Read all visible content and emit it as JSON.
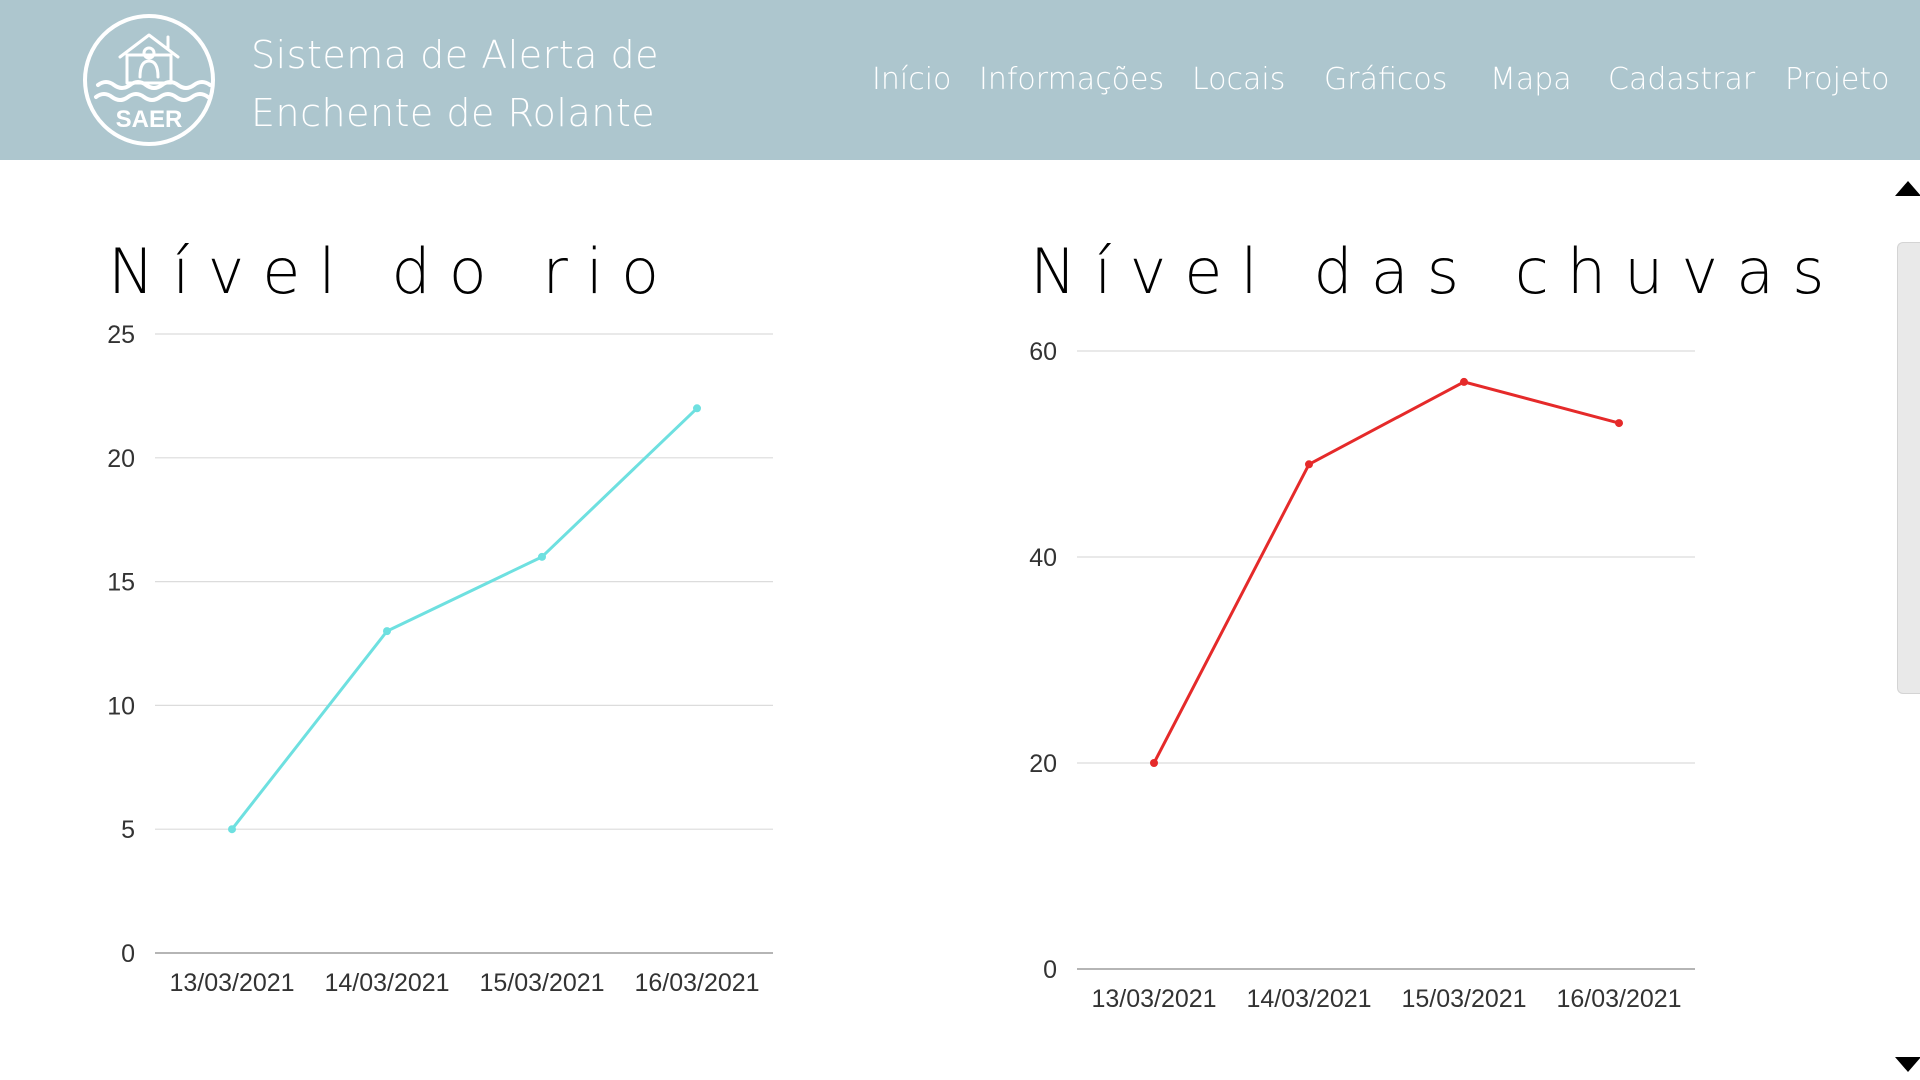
{
  "header": {
    "logo_text": "SAER",
    "title_line1": "Sistema de Alerta de",
    "title_line2": "Enchente de Rolante",
    "background_color": "#adc6ce"
  },
  "nav": {
    "items": [
      {
        "label": "Início"
      },
      {
        "label": "Informações"
      },
      {
        "label": "Locais"
      },
      {
        "label": "Gráficos"
      },
      {
        "label": "Mapa"
      },
      {
        "label": "Cadastrar"
      },
      {
        "label": "Projeto"
      }
    ]
  },
  "charts": {
    "river": {
      "heading": "Nível do rio"
    },
    "rain": {
      "heading": "Nível das chuvas"
    }
  },
  "chart_data": [
    {
      "type": "line",
      "title": "Nível do rio",
      "categories": [
        "13/03/2021",
        "14/03/2021",
        "15/03/2021",
        "16/03/2021"
      ],
      "series": [
        {
          "values": [
            5,
            13,
            16,
            22
          ],
          "color": "#6ee0e0"
        }
      ],
      "ylim": [
        0,
        25
      ],
      "yticks": [
        0,
        5,
        10,
        15,
        20,
        25
      ],
      "grid": true,
      "legend": "none"
    },
    {
      "type": "line",
      "title": "Nível das chuvas",
      "categories": [
        "13/03/2021",
        "14/03/2021",
        "15/03/2021",
        "16/03/2021"
      ],
      "series": [
        {
          "values": [
            20,
            49,
            57,
            53
          ],
          "color": "#e52a2a"
        }
      ],
      "ylim": [
        0,
        60
      ],
      "yticks": [
        0,
        20,
        40,
        60
      ],
      "grid": true,
      "legend": "none"
    }
  ]
}
